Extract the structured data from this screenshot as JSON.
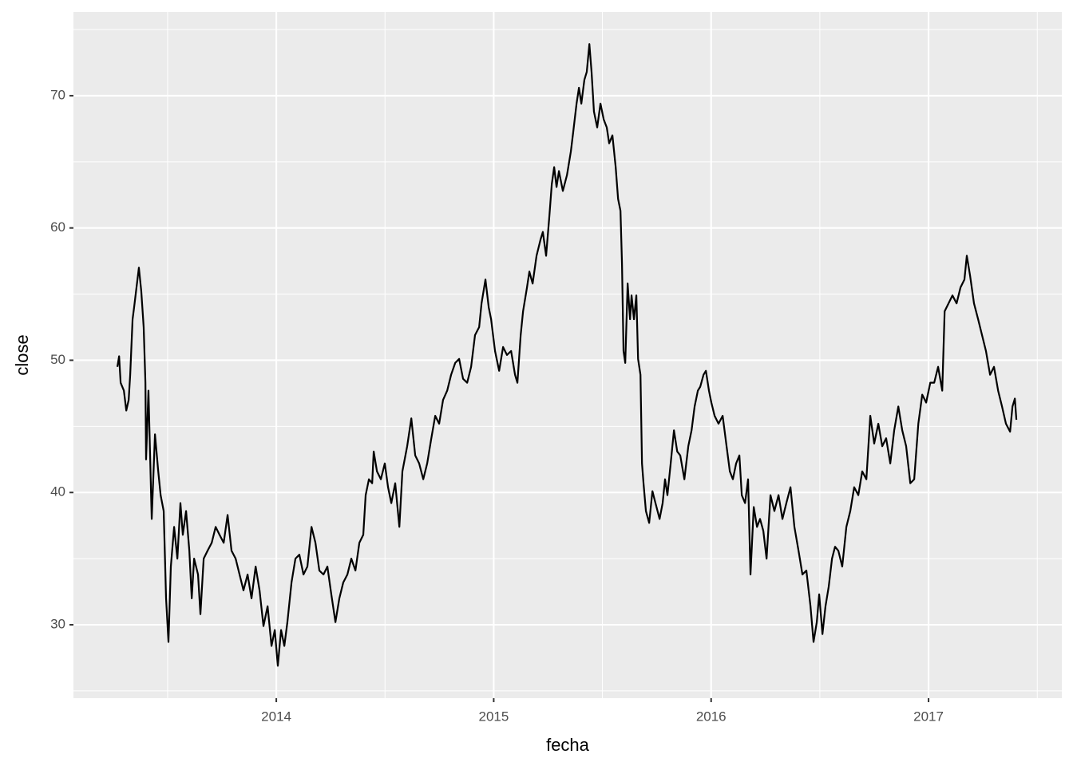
{
  "chart_data": {
    "type": "line",
    "x_label": "fecha",
    "y_label": "close",
    "xlim": [
      2013.067,
      2017.613
    ],
    "ylim": [
      24.45,
      76.33
    ],
    "xticks": [
      2014,
      2015,
      2016,
      2017
    ],
    "yticks": [
      30,
      40,
      50,
      60,
      70
    ],
    "grid": true,
    "x": [
      2013.269,
      2013.277,
      2013.284,
      2013.299,
      2013.31,
      2013.321,
      2013.328,
      2013.339,
      2013.346,
      2013.357,
      2013.368,
      2013.379,
      2013.39,
      2013.398,
      2013.401,
      2013.412,
      2013.427,
      2013.442,
      2013.457,
      2013.468,
      2013.482,
      2013.493,
      2013.504,
      2013.515,
      2013.53,
      2013.545,
      2013.559,
      2013.57,
      2013.585,
      2013.6,
      2013.611,
      2013.622,
      2013.64,
      2013.651,
      2013.666,
      2013.684,
      2013.703,
      2013.721,
      2013.739,
      2013.758,
      2013.776,
      2013.794,
      2013.813,
      2013.831,
      2013.849,
      2013.868,
      2013.886,
      2013.905,
      2013.923,
      2013.941,
      2013.96,
      2013.978,
      2013.993,
      2014.007,
      2014.022,
      2014.037,
      2014.051,
      2014.07,
      2014.088,
      2014.106,
      2014.125,
      2014.143,
      2014.162,
      2014.18,
      2014.198,
      2014.217,
      2014.235,
      2014.253,
      2014.272,
      2014.29,
      2014.308,
      2014.327,
      2014.345,
      2014.364,
      2014.382,
      2014.4,
      2014.411,
      2014.426,
      2014.441,
      2014.448,
      2014.463,
      2014.481,
      2014.499,
      2014.514,
      2014.529,
      2014.547,
      2014.566,
      2014.58,
      2014.602,
      2014.621,
      2014.639,
      2014.657,
      2014.676,
      2014.694,
      2014.712,
      2014.731,
      2014.749,
      2014.767,
      2014.786,
      2014.804,
      2014.823,
      2014.841,
      2014.859,
      2014.878,
      2014.896,
      2014.914,
      2014.933,
      2014.944,
      2014.962,
      2014.977,
      2014.988,
      2015.006,
      2015.025,
      2015.043,
      2015.061,
      2015.08,
      2015.098,
      2015.109,
      2015.124,
      2015.135,
      2015.153,
      2015.164,
      2015.179,
      2015.197,
      2015.215,
      2015.226,
      2015.241,
      2015.256,
      2015.267,
      2015.278,
      2015.289,
      2015.3,
      2015.318,
      2015.337,
      2015.355,
      2015.366,
      2015.381,
      2015.392,
      2015.403,
      2015.417,
      2015.428,
      2015.44,
      2015.45,
      2015.461,
      2015.476,
      2015.491,
      2015.506,
      2015.52,
      2015.531,
      2015.546,
      2015.561,
      2015.572,
      2015.583,
      2015.59,
      2015.597,
      2015.605,
      2015.616,
      2015.627,
      2015.634,
      2015.645,
      2015.656,
      2015.664,
      2015.675,
      2015.682,
      2015.689,
      2015.7,
      2015.715,
      2015.73,
      2015.744,
      2015.763,
      2015.777,
      2015.788,
      2015.799,
      2015.814,
      2015.829,
      2015.844,
      2015.858,
      2015.877,
      2015.895,
      2015.91,
      2015.924,
      2015.939,
      2015.95,
      2015.965,
      2015.976,
      2015.99,
      2016.001,
      2016.016,
      2016.034,
      2016.053,
      2016.071,
      2016.086,
      2016.1,
      2016.115,
      2016.13,
      2016.141,
      2016.156,
      2016.17,
      2016.181,
      2016.196,
      2016.211,
      2016.225,
      2016.24,
      2016.255,
      2016.273,
      2016.291,
      2016.31,
      2016.328,
      2016.346,
      2016.365,
      2016.383,
      2016.402,
      2016.42,
      2016.438,
      2016.457,
      2016.471,
      2016.486,
      2016.497,
      2016.512,
      2016.526,
      2016.541,
      2016.556,
      2016.57,
      2016.585,
      2016.603,
      2016.622,
      2016.64,
      2016.658,
      2016.677,
      2016.695,
      2016.714,
      2016.732,
      2016.75,
      2016.769,
      2016.787,
      2016.805,
      2016.824,
      2016.842,
      2016.861,
      2016.879,
      2016.897,
      2016.916,
      2016.934,
      2016.953,
      2016.971,
      2016.989,
      2017.008,
      2017.026,
      2017.044,
      2017.063,
      2017.074,
      2017.092,
      2017.11,
      2017.129,
      2017.147,
      2017.165,
      2017.176,
      2017.191,
      2017.209,
      2017.228,
      2017.246,
      2017.264,
      2017.283,
      2017.301,
      2017.32,
      2017.338,
      2017.356,
      2017.375,
      2017.386,
      2017.397,
      2017.404
    ],
    "series": [
      {
        "color": "#000000",
        "values": [
          49.5,
          50.3,
          48.3,
          47.7,
          46.2,
          47,
          48.9,
          53.1,
          54,
          55.5,
          57,
          55.2,
          52.5,
          48.3,
          42.5,
          47.7,
          38,
          44.4,
          41.6,
          39.8,
          38.6,
          32,
          28.7,
          34.4,
          37.4,
          35,
          39.2,
          36.8,
          38.6,
          35.6,
          32,
          35,
          33.8,
          30.8,
          35,
          35.6,
          36.2,
          37.4,
          36.8,
          36.2,
          38.3,
          35.6,
          35,
          33.8,
          32.6,
          33.8,
          32,
          34.4,
          32.6,
          29.9,
          31.4,
          28.4,
          29.6,
          26.9,
          29.6,
          28.4,
          30.2,
          33.2,
          35,
          35.3,
          33.8,
          34.4,
          37.4,
          36.2,
          34.1,
          33.8,
          34.4,
          32.3,
          30.2,
          32,
          33.2,
          33.8,
          35,
          34.1,
          36.2,
          36.8,
          39.8,
          41,
          40.7,
          43.1,
          41.6,
          41,
          42.2,
          40.4,
          39.2,
          40.7,
          37.4,
          41.6,
          43.5,
          45.6,
          42.8,
          42.2,
          41,
          42.2,
          44,
          45.8,
          45.2,
          47,
          47.7,
          48.9,
          49.8,
          50.1,
          48.6,
          48.3,
          49.5,
          51.9,
          52.5,
          54.3,
          56.1,
          54,
          53.1,
          50.7,
          49.2,
          51,
          50.4,
          50.7,
          48.9,
          48.3,
          51.9,
          53.7,
          55.5,
          56.7,
          55.8,
          57.9,
          59.1,
          59.7,
          57.9,
          60.9,
          63.3,
          64.6,
          63.1,
          64.3,
          62.8,
          64,
          65.8,
          67.3,
          69.4,
          70.6,
          69.4,
          71.2,
          71.8,
          73.9,
          71.8,
          68.8,
          67.6,
          69.4,
          68.2,
          67.6,
          66.4,
          67,
          64.6,
          62.2,
          61.3,
          57.3,
          50.7,
          49.8,
          55.8,
          53.1,
          54.9,
          53.1,
          54.9,
          50.1,
          48.9,
          42.2,
          40.7,
          38.6,
          37.7,
          40.1,
          39.2,
          38,
          39.2,
          41,
          39.8,
          42.2,
          44.7,
          43.1,
          42.8,
          41,
          43.5,
          44.7,
          46.5,
          47.7,
          48,
          48.9,
          49.2,
          47.7,
          46.8,
          45.8,
          45.2,
          45.8,
          43.5,
          41.6,
          41,
          42.2,
          42.8,
          39.8,
          39.2,
          41,
          33.8,
          38.9,
          37.4,
          38,
          37.1,
          35,
          39.8,
          38.6,
          39.8,
          38,
          39.2,
          40.4,
          37.4,
          35.6,
          33.8,
          34.1,
          31.4,
          28.7,
          30.2,
          32.3,
          29.3,
          31.4,
          32.9,
          35,
          35.9,
          35.6,
          34.4,
          37.4,
          38.6,
          40.4,
          39.8,
          41.6,
          41,
          45.8,
          43.7,
          45.2,
          43.5,
          44.1,
          42.2,
          44.7,
          46.5,
          44.7,
          43.5,
          40.7,
          41,
          45.2,
          47.4,
          46.8,
          48.3,
          48.3,
          49.5,
          47.7,
          53.7,
          54.3,
          54.9,
          54.3,
          55.5,
          56.1,
          57.9,
          56.4,
          54.3,
          53.1,
          51.9,
          50.7,
          48.9,
          49.5,
          47.7,
          46.5,
          45.2,
          44.6,
          46.5,
          47.1,
          45.5
        ]
      }
    ]
  }
}
